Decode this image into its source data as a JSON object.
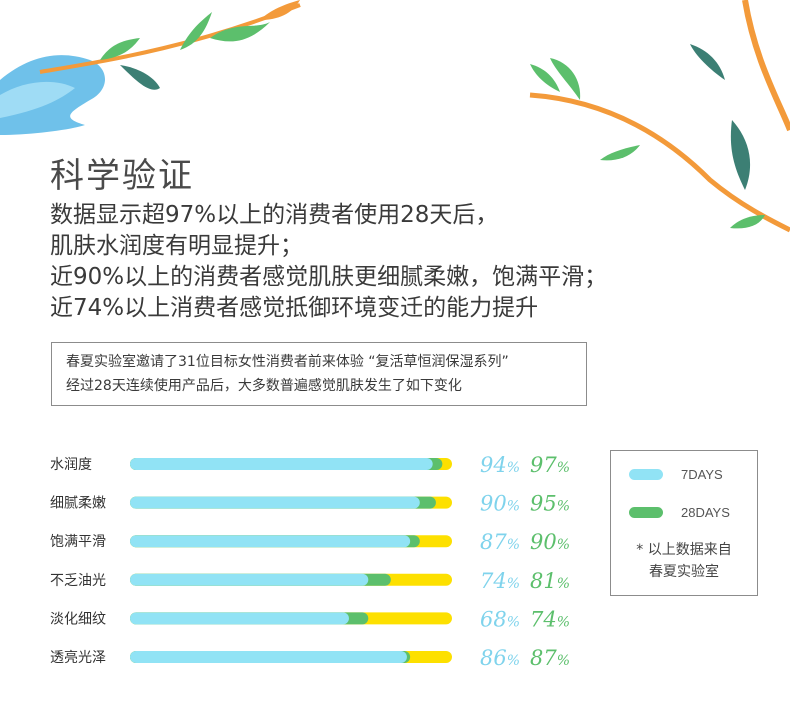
{
  "heading": {
    "title": "科学验证",
    "lines": [
      "数据显示超97%以上的消费者使用28天后，",
      "肌肤水润度有明显提升；",
      "近90%以上的消费者感觉肌肤更细腻柔嫩，饱满平滑；",
      "近74%以上消费者感觉抵御环境变迁的能力提升"
    ]
  },
  "note": {
    "line1": "春夏实验室邀请了31位目标女性消费者前来体验 “复活草恒润保湿系列”",
    "line2": "经过28天连续使用产品后，大多数普遍感觉肌肤发生了如下变化"
  },
  "legend": {
    "items": [
      {
        "label": "7DAYS",
        "color": "#91e3f5"
      },
      {
        "label": "28DAYS",
        "color": "#5cbf6c"
      }
    ],
    "source_line1": "* 以上数据来自",
    "source_line2": "春夏实验室"
  },
  "colors": {
    "track": "#fde000",
    "day7": "#91e3f5",
    "day28": "#5cbf6c",
    "pct7_text": "#7fd3ec",
    "pct28_text": "#5cbf6c"
  },
  "chart_data": {
    "type": "bar",
    "orientation": "horizontal",
    "categories": [
      "水润度",
      "细腻柔嫩",
      "饱满平滑",
      "不乏油光",
      "淡化细纹",
      "透亮光泽"
    ],
    "series": [
      {
        "name": "7DAYS",
        "values": [
          94,
          90,
          87,
          74,
          68,
          86
        ]
      },
      {
        "name": "28DAYS",
        "values": [
          97,
          95,
          90,
          81,
          74,
          87
        ]
      }
    ],
    "unit": "%",
    "xlim": [
      0,
      100
    ]
  }
}
